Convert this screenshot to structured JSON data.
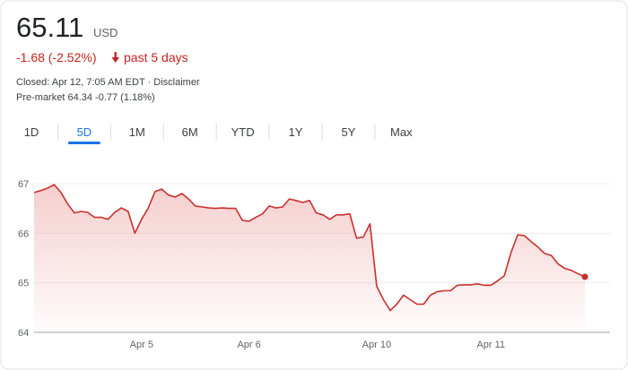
{
  "header": {
    "price": "65.11",
    "currency": "USD",
    "change": "-1.68 (-2.52%)",
    "period": "past 5 days",
    "closed": "Closed: Apr 12, 7:05 AM EDT · Disclaimer",
    "pre_market": "Pre-market 64.34 -0.77 (1.18%)"
  },
  "tabs": {
    "labels": [
      "1D",
      "5D",
      "1M",
      "6M",
      "YTD",
      "1Y",
      "5Y",
      "Max"
    ],
    "selected": 1
  },
  "chart_data": {
    "type": "line",
    "categories": [
      null,
      null,
      null,
      null,
      null,
      null,
      null,
      null,
      null,
      null,
      null,
      null,
      null,
      null,
      null,
      null,
      "Apr 5",
      null,
      null,
      null,
      null,
      null,
      null,
      null,
      null,
      null,
      null,
      null,
      null,
      null,
      null,
      null,
      "Apr 6",
      null,
      null,
      null,
      null,
      null,
      null,
      null,
      null,
      null,
      null,
      null,
      null,
      null,
      null,
      null,
      null,
      null,
      null,
      "Apr 10",
      null,
      null,
      null,
      null,
      null,
      null,
      null,
      null,
      null,
      null,
      null,
      null,
      null,
      null,
      null,
      null,
      "Apr 11",
      null,
      null,
      null,
      null,
      null,
      null,
      null,
      null,
      null,
      null,
      null,
      null,
      null,
      null
    ],
    "values": [
      66.82,
      66.86,
      66.91,
      66.98,
      66.82,
      66.59,
      66.41,
      66.44,
      66.42,
      66.32,
      66.32,
      66.28,
      66.42,
      66.51,
      66.44,
      66.0,
      66.28,
      66.51,
      66.84,
      66.89,
      66.77,
      66.73,
      66.8,
      66.69,
      66.55,
      66.53,
      66.51,
      66.5,
      66.51,
      66.5,
      66.5,
      66.26,
      66.24,
      66.32,
      66.39,
      66.55,
      66.51,
      66.53,
      66.69,
      66.66,
      66.62,
      66.66,
      66.41,
      66.37,
      66.28,
      66.37,
      66.37,
      66.39,
      65.9,
      65.92,
      66.19,
      64.93,
      64.66,
      64.44,
      64.57,
      64.75,
      64.66,
      64.57,
      64.57,
      64.75,
      64.82,
      64.84,
      64.84,
      64.95,
      64.96,
      64.96,
      64.98,
      64.95,
      64.95,
      65.04,
      65.14,
      65.61,
      65.97,
      65.95,
      65.83,
      65.72,
      65.59,
      65.55,
      65.38,
      65.29,
      65.25,
      65.18,
      65.12
    ],
    "color": "#c9302c",
    "ylim": [
      64,
      67.35
    ],
    "yticks": [
      64,
      65,
      66,
      67
    ],
    "grid": true,
    "area": true,
    "last_marker": true
  }
}
